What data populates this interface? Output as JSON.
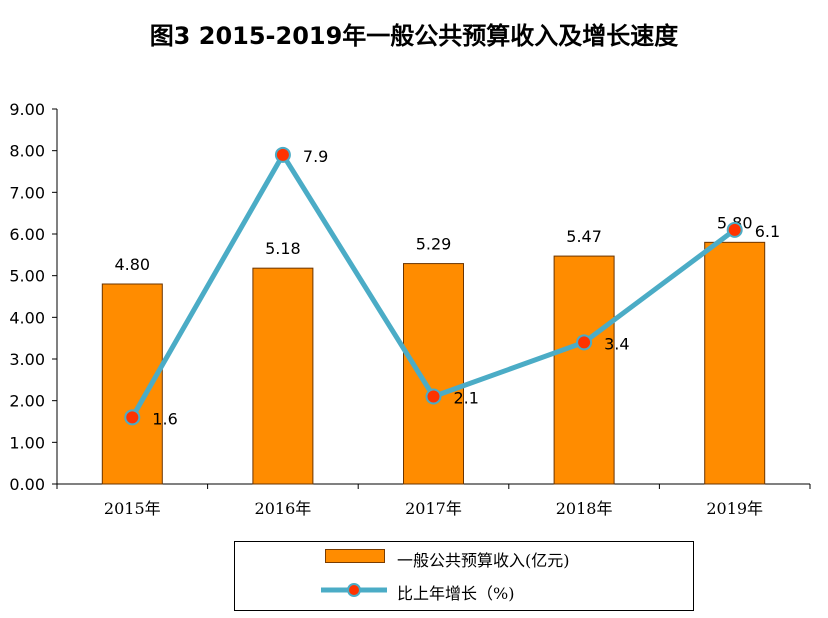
{
  "title": "图3  2015-2019年一般公共预算收入及增长速度",
  "colors": {
    "bar": "#ff8c00",
    "bar_border": "#6b3400",
    "line": "#4bacc6",
    "marker": "#ff3300"
  },
  "chart_data": {
    "type": "bar",
    "title": "图3  2015-2019年一般公共预算收入及增长速度",
    "categories": [
      "2015年",
      "2016年",
      "2017年",
      "2018年",
      "2019年"
    ],
    "ylim": [
      0,
      9
    ],
    "yticks": [
      "0.00",
      "1.00",
      "2.00",
      "3.00",
      "4.00",
      "5.00",
      "6.00",
      "7.00",
      "8.00",
      "9.00"
    ],
    "series": [
      {
        "name": "一般公共预算收入(亿元)",
        "type": "bar",
        "values": [
          4.8,
          5.18,
          5.29,
          5.47,
          5.8
        ],
        "labels": [
          "4.80",
          "5.18",
          "5.29",
          "5.47",
          "5.80"
        ]
      },
      {
        "name": "比上年增长（%)",
        "type": "line",
        "values": [
          1.6,
          7.9,
          2.1,
          3.4,
          6.1
        ],
        "labels": [
          "1.6",
          "7.9",
          "2.1",
          "3.4",
          "6.1"
        ]
      }
    ],
    "grid": false,
    "legend": "bottom"
  }
}
